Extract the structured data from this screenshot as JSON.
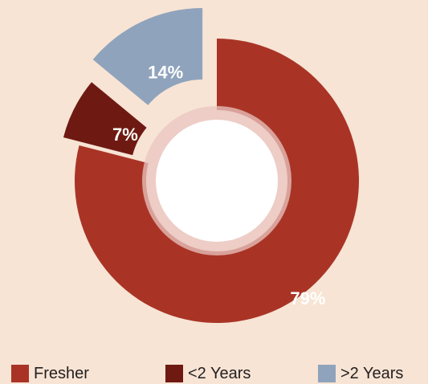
{
  "chart_data": {
    "type": "pie",
    "variant": "donut",
    "series": [
      {
        "name": "Fresher",
        "value": 79,
        "label": "79%",
        "color": "#a93426"
      },
      {
        "name": "<2 Years",
        "value": 7,
        "label": "7%",
        "color": "#6e1a12"
      },
      {
        "name": ">2 Years",
        "value": 14,
        "label": "14%",
        "color": "#8fa3bc"
      }
    ],
    "legend_position": "bottom",
    "legend": [
      "Fresher",
      "<2 Years",
      ">2 Years"
    ],
    "title": ""
  },
  "colors": {
    "background": "#f7e4d4",
    "inner_ring": "#e9c5c1",
    "inner_hole": "#ffffff",
    "label_text": "#ffffff",
    "legend_text": "#231f20"
  }
}
